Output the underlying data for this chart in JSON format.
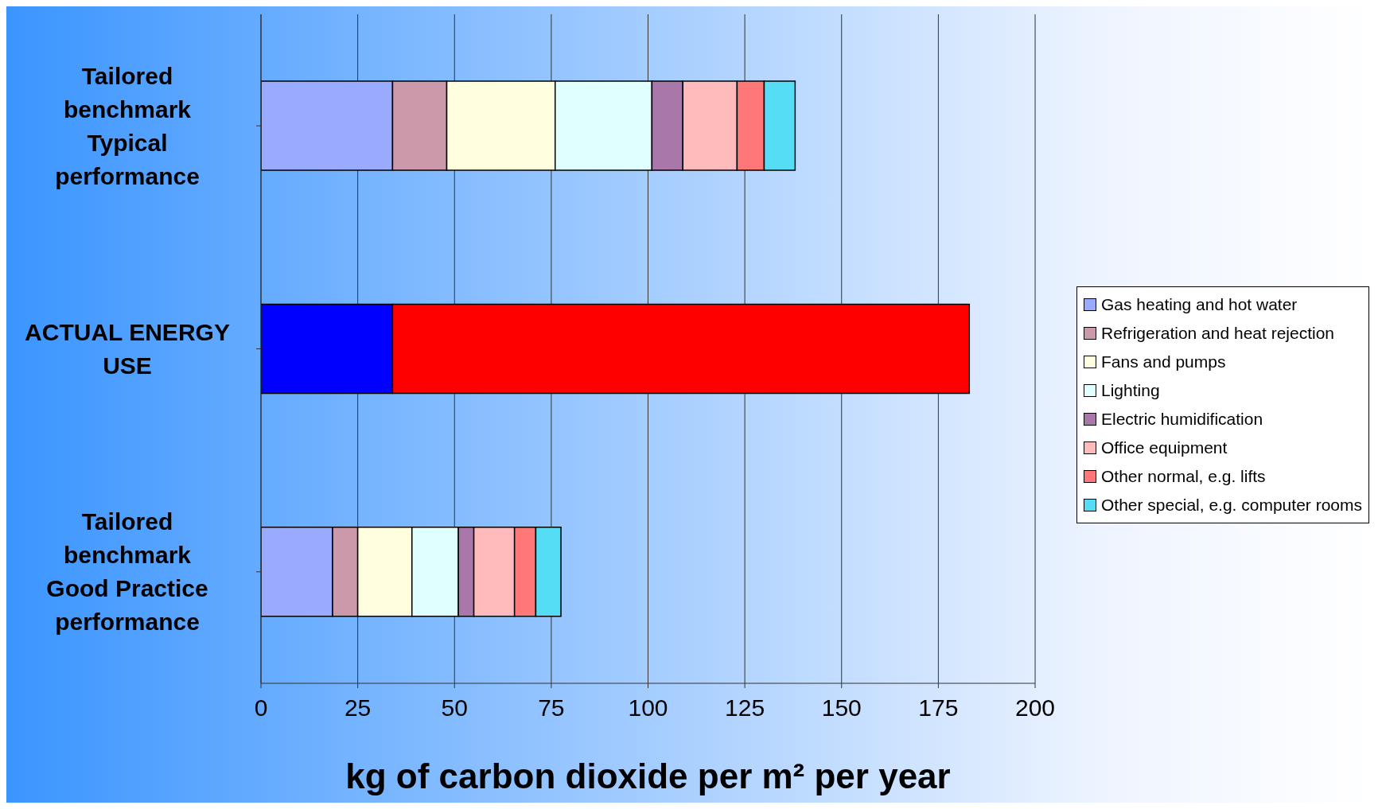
{
  "chart_data": {
    "type": "bar",
    "orientation": "horizontal",
    "stacked": true,
    "xlabel": "kg of carbon dioxide per m² per year",
    "categories": [
      "Tailored benchmark Typical performance",
      "ACTUAL ENERGY USE",
      "Tailored benchmark Good Practice performance"
    ],
    "series": [
      {
        "name": "Gas heating and hot water",
        "color": "#99aaff",
        "values": [
          34,
          null,
          18.5
        ]
      },
      {
        "name": "Refrigeration and heat rejection",
        "color": "#cc99aa",
        "values": [
          14,
          null,
          6.5
        ]
      },
      {
        "name": "Fans and pumps",
        "color": "#ffffe0",
        "values": [
          28,
          null,
          14
        ]
      },
      {
        "name": "Lighting",
        "color": "#e0ffff",
        "values": [
          25,
          null,
          12
        ]
      },
      {
        "name": "Electric humidification",
        "color": "#aa77aa",
        "values": [
          8,
          null,
          4
        ]
      },
      {
        "name": "Office equipment",
        "color": "#ffbbbb",
        "values": [
          14,
          null,
          10.5
        ]
      },
      {
        "name": "Other normal, e.g. lifts",
        "color": "#ff7777",
        "values": [
          7,
          null,
          5.5
        ]
      },
      {
        "name": "Other special, e.g. computer rooms",
        "color": "#55ddf5",
        "values": [
          8,
          null,
          6.5
        ]
      },
      {
        "color": "#0000ff",
        "values": [
          null,
          34,
          null
        ]
      },
      {
        "color": "#ff0000",
        "values": [
          null,
          149,
          null
        ]
      }
    ],
    "xlim": [
      0,
      200
    ],
    "xticks": [
      0,
      25,
      50,
      75,
      100,
      125,
      150,
      175,
      200
    ],
    "grid": "x",
    "legend": "right"
  }
}
